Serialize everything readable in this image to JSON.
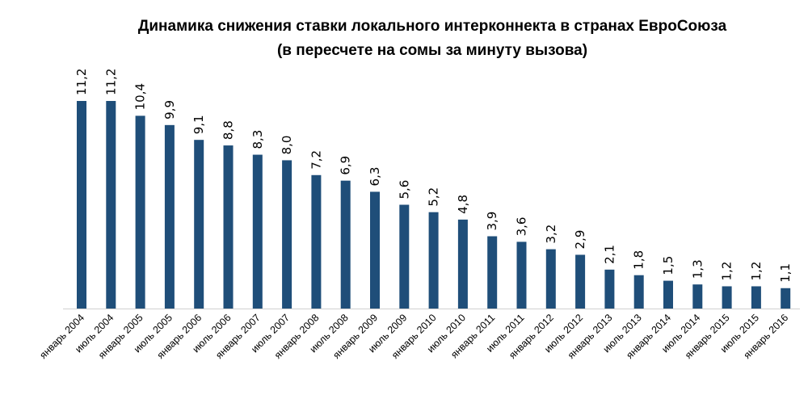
{
  "chart_data": {
    "type": "bar",
    "title": "Динамика снижения ставки локального интерконнекта в странах ЕвроСоюза",
    "subtitle": "(в пересчете на сомы за минуту вызова)",
    "xlabel": "",
    "ylabel": "",
    "ylim": [
      0,
      11.2
    ],
    "grid": false,
    "bar_color": "#1f4e79",
    "categories": [
      "январь 2004",
      "июль 2004",
      "январь 2005",
      "июль 2005",
      "январь 2006",
      "июль 2006",
      "январь 2007",
      "июль 2007",
      "январь 2008",
      "июль 2008",
      "январь 2009",
      "июль 2009",
      "январь 2010",
      "июль 2010",
      "январь 2011",
      "июль 2011",
      "январь 2012",
      "июль 2012",
      "январь 2013",
      "июль 2013",
      "январь 2014",
      "июль 2014",
      "январь 2015",
      "июль 2015",
      "январь 2016"
    ],
    "values": [
      11.2,
      11.2,
      10.4,
      9.9,
      9.1,
      8.8,
      8.3,
      8.0,
      7.2,
      6.9,
      6.3,
      5.6,
      5.2,
      4.8,
      3.9,
      3.6,
      3.2,
      2.9,
      2.1,
      1.8,
      1.5,
      1.3,
      1.2,
      1.2,
      1.1
    ],
    "data_labels": [
      "11,2",
      "11,2",
      "10,4",
      "9,9",
      "9,1",
      "8,8",
      "8,3",
      "8,0",
      "7,2",
      "6,9",
      "6,3",
      "5,6",
      "5,2",
      "4,8",
      "3,9",
      "3,6",
      "3,2",
      "2,9",
      "2,1",
      "1,8",
      "1,5",
      "1,3",
      "1,2",
      "1,2",
      "1,1"
    ]
  }
}
